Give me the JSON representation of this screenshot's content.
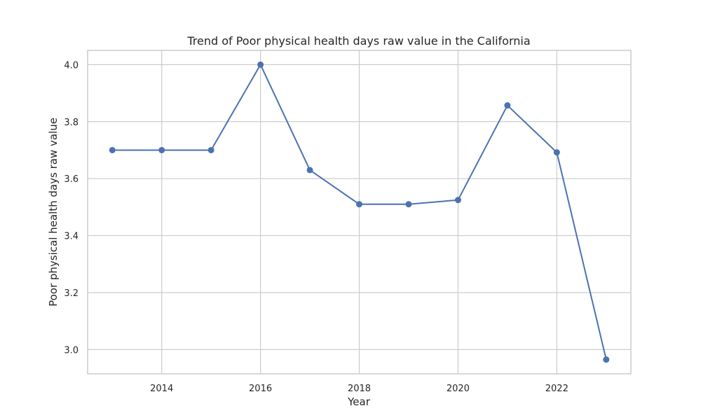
{
  "chart_data": {
    "type": "line",
    "title": "Trend of Poor physical health days raw value in the California",
    "xlabel": "Year",
    "ylabel": "Poor physical health days raw value",
    "x": [
      2013,
      2014,
      2015,
      2016,
      2017,
      2018,
      2019,
      2020,
      2021,
      2022,
      2023
    ],
    "series": [
      {
        "values": [
          3.7,
          3.7,
          3.7,
          4.0,
          3.63,
          3.51,
          3.51,
          3.525,
          3.857,
          3.692,
          2.965
        ]
      }
    ],
    "xlim": [
      2012.5,
      2023.5
    ],
    "ylim": [
      2.915,
      4.05
    ],
    "xticks": [
      2014,
      2016,
      2018,
      2020,
      2022
    ],
    "xtick_labels": [
      "2014",
      "2016",
      "2018",
      "2020",
      "2022"
    ],
    "yticks": [
      3.0,
      3.2,
      3.4,
      3.6,
      3.8,
      4.0
    ],
    "ytick_labels": [
      "3.0",
      "3.2",
      "3.4",
      "3.6",
      "3.8",
      "4.0"
    ],
    "grid": true,
    "legend": false,
    "line_color": "#4c72b0"
  }
}
